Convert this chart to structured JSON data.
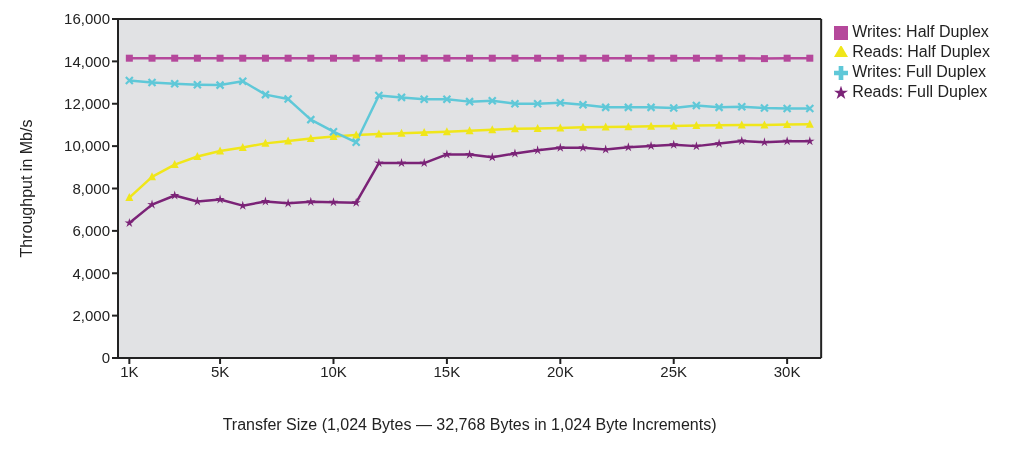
{
  "chart_data": {
    "type": "line",
    "xlabel": "Transfer Size (1,024 Bytes — 32,768 Bytes in 1,024 Byte Increments)",
    "ylabel": "Throughput in Mb/s",
    "x": [
      1,
      2,
      3,
      4,
      5,
      6,
      7,
      8,
      9,
      10,
      11,
      12,
      13,
      14,
      15,
      16,
      17,
      18,
      19,
      20,
      21,
      22,
      23,
      24,
      25,
      26,
      27,
      28,
      29,
      30,
      31
    ],
    "xlim": [
      0.5,
      31.5
    ],
    "xticks": [
      {
        "value": 1,
        "label": "1K"
      },
      {
        "value": 5,
        "label": "5K"
      },
      {
        "value": 10,
        "label": "10K"
      },
      {
        "value": 15,
        "label": "15K"
      },
      {
        "value": 20,
        "label": "20K"
      },
      {
        "value": 25,
        "label": "25K"
      },
      {
        "value": 30,
        "label": "30K"
      }
    ],
    "ylim": [
      0,
      16000
    ],
    "yticks": [
      0,
      {
        "value": 2000,
        "label": "2,000"
      },
      {
        "value": 4000,
        "label": "4,000"
      },
      {
        "value": 6000,
        "label": "6,000"
      },
      {
        "value": 8000,
        "label": "8,000"
      },
      {
        "value": 10000,
        "label": "10,000"
      },
      {
        "value": 12000,
        "label": "12,000"
      },
      {
        "value": 14000,
        "label": "14,000"
      },
      {
        "value": 16000,
        "label": "16,000"
      }
    ],
    "grid": false,
    "legend": "top right",
    "line_style": "solid",
    "series": [
      {
        "name": "Writes: Half Duplex",
        "color": "#b5489b",
        "marker": "square",
        "values": [
          14150,
          14150,
          14150,
          14150,
          14150,
          14150,
          14150,
          14150,
          14150,
          14150,
          14150,
          14150,
          14150,
          14150,
          14150,
          14150,
          14150,
          14150,
          14150,
          14150,
          14150,
          14150,
          14150,
          14150,
          14150,
          14150,
          14150,
          14150,
          14130,
          14150,
          14150
        ]
      },
      {
        "name": "Reads: Half Duplex",
        "color": "#f0e61a",
        "marker": "triangle",
        "values": [
          7570,
          8550,
          9130,
          9510,
          9770,
          9940,
          10130,
          10240,
          10360,
          10450,
          10530,
          10570,
          10610,
          10640,
          10680,
          10730,
          10770,
          10820,
          10830,
          10860,
          10890,
          10900,
          10920,
          10940,
          10950,
          10970,
          10990,
          11000,
          11000,
          11020,
          11030
        ]
      },
      {
        "name": "Writes: Full Duplex",
        "color": "#5fc8d8",
        "marker": "cross",
        "values": [
          13100,
          13000,
          12940,
          12900,
          12880,
          13060,
          12430,
          12220,
          11250,
          10680,
          10180,
          12390,
          12300,
          12210,
          12210,
          12100,
          12140,
          12000,
          12000,
          12050,
          11950,
          11830,
          11830,
          11830,
          11800,
          11920,
          11830,
          11860,
          11800,
          11780,
          11780
        ]
      },
      {
        "name": "Reads: Full Duplex",
        "color": "#7b2377",
        "marker": "star",
        "values": [
          6370,
          7240,
          7670,
          7390,
          7480,
          7190,
          7390,
          7300,
          7370,
          7350,
          7330,
          9200,
          9200,
          9200,
          9610,
          9600,
          9480,
          9650,
          9800,
          9920,
          9920,
          9840,
          9950,
          10010,
          10070,
          10000,
          10120,
          10240,
          10180,
          10230,
          10230
        ]
      }
    ]
  }
}
